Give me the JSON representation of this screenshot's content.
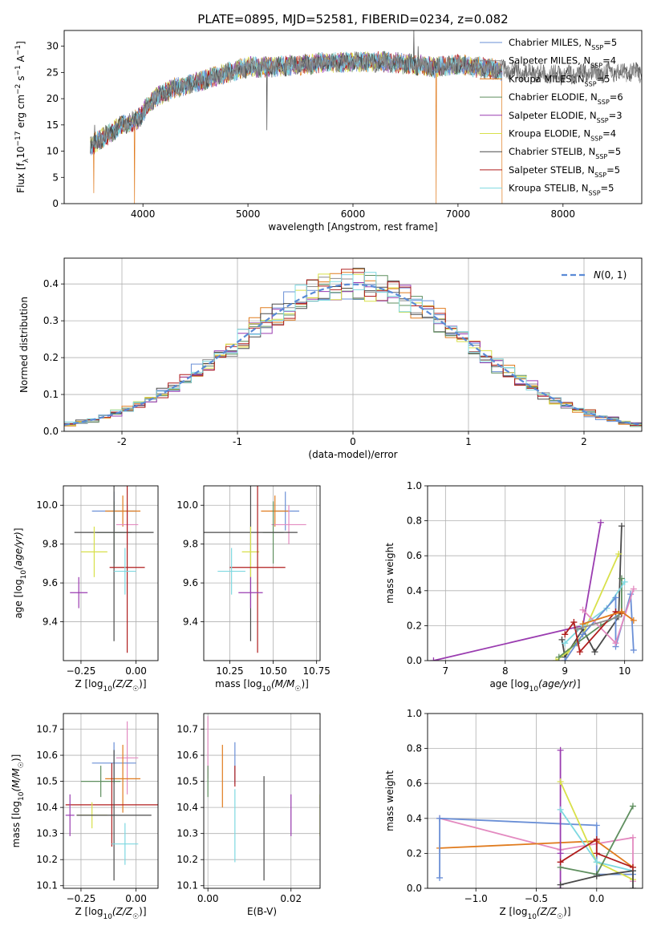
{
  "figure_title": "PLATE=0895, MJD=52581, FIBERID=0234, z=0.082",
  "colors": {
    "Chabrier MILES": "#6a8fd6",
    "Salpeter MILES": "#8c8c8c",
    "Kroupa MILES": "#e07b1e",
    "Chabrier ELODIE": "#5f8f5f",
    "Salpeter ELODIE": "#9a3cb0",
    "Kroupa ELODIE": "#d8e04a",
    "Chabrier STELIB": "#4a4a4a",
    "Salpeter STELIB": "#b01d1d",
    "Kroupa STELIB": "#7ed8e0",
    "Pink": "#e38ac0",
    "gaussian": "#5a8ad6",
    "grid": "#b0b0b0"
  },
  "chart_data": [
    {
      "id": "spectrum",
      "type": "line",
      "title": "PLATE=0895, MJD=52581, FIBERID=0234, z=0.082",
      "xlabel": "wavelength [Angstrom, rest frame]",
      "ylabel": "Flux [f_λ10^-17 erg cm^-2 s^-1 A^-1]",
      "xlim": [
        3250,
        8750
      ],
      "ylim": [
        0,
        33
      ],
      "xticks": [
        4000,
        5000,
        6000,
        7000,
        8000
      ],
      "yticks": [
        0,
        5,
        10,
        15,
        20,
        25,
        30
      ],
      "grid": false,
      "legend": "upper right",
      "legend_entries": [
        {
          "model": "Chabrier MILES",
          "nssp": "5"
        },
        {
          "model": "Salpeter MILES",
          "nssp": "4"
        },
        {
          "model": "Kroupa MILES",
          "nssp": "5"
        },
        {
          "model": "Chabrier ELODIE",
          "nssp": "6"
        },
        {
          "model": "Salpeter ELODIE",
          "nssp": "3"
        },
        {
          "model": "Kroupa ELODIE",
          "nssp": "4"
        },
        {
          "model": "Chabrier STELIB",
          "nssp": "5"
        },
        {
          "model": "Salpeter STELIB",
          "nssp": "5"
        },
        {
          "model": "Kroupa STELIB",
          "nssp": "5"
        }
      ],
      "continuum": [
        [
          3500,
          11
        ],
        [
          3650,
          13
        ],
        [
          3800,
          15
        ],
        [
          3950,
          16
        ],
        [
          4100,
          20
        ],
        [
          4300,
          22
        ],
        [
          4500,
          23
        ],
        [
          4800,
          25
        ],
        [
          5000,
          26
        ],
        [
          5200,
          26
        ],
        [
          5500,
          26.5
        ],
        [
          5800,
          27
        ],
        [
          6000,
          27
        ],
        [
          6300,
          27
        ],
        [
          6600,
          26.5
        ],
        [
          6800,
          26
        ],
        [
          7000,
          26.5
        ],
        [
          7200,
          26
        ],
        [
          7400,
          25.5
        ],
        [
          7600,
          25
        ],
        [
          8000,
          24.5
        ],
        [
          8400,
          25
        ],
        [
          8750,
          25
        ]
      ],
      "features": {
        "drops": [
          [
            3530,
            2
          ],
          [
            3920,
            0
          ],
          [
            6790,
            0
          ],
          [
            7420,
            0
          ]
        ],
        "spikes": [
          [
            3540,
            15
          ],
          [
            5180,
            14
          ],
          [
            6580,
            33
          ],
          [
            6620,
            30
          ]
        ]
      }
    },
    {
      "id": "residuals",
      "type": "histogram",
      "xlabel": "(data-model)/error",
      "ylabel": "Normed distribution",
      "xlim": [
        -2.5,
        2.5
      ],
      "ylim": [
        0,
        0.47
      ],
      "xticks": [
        -2,
        -1,
        0,
        1,
        2
      ],
      "yticks": [
        0.0,
        0.1,
        0.2,
        0.3,
        0.4
      ],
      "grid": true,
      "legend": "upper right",
      "legend_label": "N(0,1)",
      "bin_width": 0.1,
      "bins_from": -2.5
    },
    {
      "id": "age-vs-Z",
      "type": "errorbar",
      "xlabel": "Z [log10(Z/Z☉)]",
      "ylabel": "age  [log10(age/yr)]",
      "xlim": [
        -0.33,
        0.1
      ],
      "ylim": [
        9.2,
        10.1
      ],
      "xticks": [
        -0.25,
        0.0
      ],
      "yticks": [
        9.4,
        9.6,
        9.8,
        10.0
      ],
      "points": [
        {
          "model": "Chabrier MILES",
          "x": -0.1,
          "xe": 0.1,
          "y": 9.97,
          "ye": 0.1
        },
        {
          "model": "Kroupa MILES",
          "x": -0.06,
          "xe": 0.08,
          "y": 9.97,
          "ye": 0.08
        },
        {
          "model": "Pink",
          "x": -0.04,
          "xe": 0.05,
          "y": 9.9,
          "ye": 0.1
        },
        {
          "model": "Chabrier ELODIE",
          "x": -0.1,
          "xe": 0.08,
          "y": 9.86,
          "ye": 0.16
        },
        {
          "model": "Chabrier STELIB",
          "x": -0.1,
          "xe": 0.18,
          "y": 9.86,
          "ye": 0.56
        },
        {
          "model": "Kroupa ELODIE",
          "x": -0.19,
          "xe": 0.06,
          "y": 9.76,
          "ye": 0.13
        },
        {
          "model": "Salpeter STELIB",
          "x": -0.04,
          "xe": 0.08,
          "y": 9.68,
          "ye": 0.44
        },
        {
          "model": "Kroupa STELIB",
          "x": -0.05,
          "xe": 0.05,
          "y": 9.66,
          "ye": 0.12
        },
        {
          "model": "Salpeter ELODIE",
          "x": -0.26,
          "xe": 0.04,
          "y": 9.55,
          "ye": 0.08
        }
      ]
    },
    {
      "id": "age-vs-mass",
      "type": "errorbar",
      "xlabel": "mass [log10(M/M☉)]",
      "ylabel": "",
      "xlim": [
        10.1,
        10.77
      ],
      "ylim": [
        9.2,
        10.1
      ],
      "xticks": [
        10.25,
        10.5,
        10.75
      ],
      "yticks": [
        9.4,
        9.6,
        9.8,
        10.0
      ],
      "points": [
        {
          "model": "Chabrier MILES",
          "x": 10.57,
          "xe": 0.08,
          "y": 9.97,
          "ye": 0.1
        },
        {
          "model": "Kroupa MILES",
          "x": 10.51,
          "xe": 0.08,
          "y": 9.97,
          "ye": 0.08
        },
        {
          "model": "Pink",
          "x": 10.59,
          "xe": 0.1,
          "y": 9.9,
          "ye": 0.1
        },
        {
          "model": "Chabrier ELODIE",
          "x": 10.5,
          "xe": 0.06,
          "y": 9.86,
          "ye": 0.16
        },
        {
          "model": "Chabrier STELIB",
          "x": 10.37,
          "xe": 0.27,
          "y": 9.86,
          "ye": 0.56
        },
        {
          "model": "Kroupa ELODIE",
          "x": 10.37,
          "xe": 0.05,
          "y": 9.76,
          "ye": 0.13
        },
        {
          "model": "Salpeter STELIB",
          "x": 10.41,
          "xe": 0.16,
          "y": 9.68,
          "ye": 0.44
        },
        {
          "model": "Kroupa STELIB",
          "x": 10.26,
          "xe": 0.08,
          "y": 9.66,
          "ye": 0.12
        },
        {
          "model": "Salpeter ELODIE",
          "x": 10.37,
          "xe": 0.07,
          "y": 9.55,
          "ye": 0.08
        }
      ]
    },
    {
      "id": "weight-vs-age",
      "type": "line",
      "xlabel": "age  [log10(age/yr)]",
      "ylabel": "mass weight",
      "xlim": [
        6.7,
        10.3
      ],
      "ylim": [
        0,
        1.0
      ],
      "xticks": [
        7,
        8,
        9,
        10
      ],
      "yticks": [
        0.0,
        0.2,
        0.4,
        0.6,
        0.8,
        1.0
      ],
      "grid": true,
      "series": [
        {
          "model": "Salpeter ELODIE",
          "x": [
            6.8,
            9.3,
            9.6
          ],
          "y": [
            0.0,
            0.2,
            0.79
          ]
        },
        {
          "model": "Chabrier STELIB",
          "x": [
            8.95,
            9.0,
            9.3,
            9.5,
            9.9,
            9.95
          ],
          "y": [
            0.12,
            0.02,
            0.18,
            0.05,
            0.25,
            0.77
          ]
        },
        {
          "model": "Kroupa ELODIE",
          "x": [
            8.85,
            9.05,
            9.3,
            9.9
          ],
          "y": [
            0.0,
            0.05,
            0.15,
            0.61
          ]
        },
        {
          "model": "Chabrier ELODIE",
          "x": [
            8.9,
            9.2,
            9.6,
            9.95,
            9.95
          ],
          "y": [
            0.02,
            0.1,
            0.2,
            0.27,
            0.47
          ]
        },
        {
          "model": "Kroupa STELIB",
          "x": [
            9.0,
            9.3,
            9.7,
            10.0
          ],
          "y": [
            0.1,
            0.2,
            0.3,
            0.45
          ]
        },
        {
          "model": "Chabrier MILES",
          "x": [
            9.0,
            9.3,
            9.85,
            9.85,
            10.1,
            10.15
          ],
          "y": [
            0.0,
            0.15,
            0.36,
            0.08,
            0.38,
            0.06
          ]
        },
        {
          "model": "Pink",
          "x": [
            9.3,
            9.85,
            10.15
          ],
          "y": [
            0.29,
            0.1,
            0.41
          ]
        },
        {
          "model": "Salpeter STELIB",
          "x": [
            9.0,
            9.15,
            9.25,
            9.85,
            9.95
          ],
          "y": [
            0.15,
            0.22,
            0.05,
            0.28,
            0.27
          ]
        },
        {
          "model": "Kroupa MILES",
          "x": [
            9.3,
            9.95,
            10.15
          ],
          "y": [
            0.21,
            0.28,
            0.23
          ]
        },
        {
          "model": "Salpeter MILES",
          "x": [
            9.2,
            9.9
          ],
          "y": [
            0.18,
            0.25
          ]
        }
      ]
    },
    {
      "id": "mass-vs-Z",
      "type": "errorbar",
      "xlabel": "Z [log10(Z/Z☉)]",
      "ylabel": "mass [log10(M/M☉)]",
      "xlim": [
        -0.33,
        0.1
      ],
      "ylim": [
        10.09,
        10.76
      ],
      "xticks": [
        -0.25,
        0.0
      ],
      "yticks": [
        10.1,
        10.2,
        10.3,
        10.4,
        10.5,
        10.6,
        10.7
      ],
      "points": [
        {
          "model": "Pink",
          "x": -0.04,
          "xe": 0.05,
          "y": 10.59,
          "ye": 0.14
        },
        {
          "model": "Chabrier MILES",
          "x": -0.1,
          "xe": 0.1,
          "y": 10.57,
          "ye": 0.08
        },
        {
          "model": "Kroupa MILES",
          "x": -0.06,
          "xe": 0.08,
          "y": 10.51,
          "ye": 0.13
        },
        {
          "model": "Chabrier ELODIE",
          "x": -0.16,
          "xe": 0.09,
          "y": 10.5,
          "ye": 0.06
        },
        {
          "model": "Salpeter STELIB",
          "x": -0.11,
          "xe": 0.21,
          "y": 10.41,
          "ye": 0.16
        },
        {
          "model": "Kroupa ELODIE",
          "x": -0.2,
          "xe": 0.07,
          "y": 10.37,
          "ye": 0.05
        },
        {
          "model": "Chabrier STELIB",
          "x": -0.1,
          "xe": 0.17,
          "y": 10.37,
          "ye": 0.25
        },
        {
          "model": "Salpeter ELODIE",
          "x": -0.3,
          "xe": 0.02,
          "y": 10.37,
          "ye": 0.08
        },
        {
          "model": "Kroupa STELIB",
          "x": -0.05,
          "xe": 0.06,
          "y": 10.26,
          "ye": 0.08
        }
      ]
    },
    {
      "id": "mass-vs-ebv",
      "type": "errorbar",
      "xlabel": "E(B-V)",
      "ylabel": "",
      "xlim": [
        -0.001,
        0.027
      ],
      "ylim": [
        10.09,
        10.76
      ],
      "xticks": [
        0.0,
        0.02
      ],
      "yticks": [
        10.1,
        10.2,
        10.3,
        10.4,
        10.5,
        10.6,
        10.7
      ],
      "points": [
        {
          "model": "Pink",
          "x": 0.0,
          "xe": 0.0,
          "y": 10.63,
          "ye": 0.12
        },
        {
          "model": "Kroupa MILES",
          "x": 0.0035,
          "xe": 0.0,
          "y": 10.52,
          "ye": 0.12
        },
        {
          "model": "Chabrier MILES",
          "x": 0.0065,
          "xe": 0.0,
          "y": 10.57,
          "ye": 0.08
        },
        {
          "model": "Salpeter STELIB",
          "x": 0.0065,
          "xe": 0.0,
          "y": 10.52,
          "ye": 0.04
        },
        {
          "model": "Kroupa STELIB",
          "x": 0.0065,
          "xe": 0.0,
          "y": 10.33,
          "ye": 0.14
        },
        {
          "model": "Chabrier STELIB",
          "x": 0.0135,
          "xe": 0.0,
          "y": 10.32,
          "ye": 0.2
        },
        {
          "model": "Salpeter ELODIE",
          "x": 0.02,
          "xe": 0.0,
          "y": 10.37,
          "ye": 0.08
        },
        {
          "model": "Kroupa ELODIE",
          "x": 0.027,
          "xe": 0.0,
          "y": 10.37,
          "ye": 0.08
        },
        {
          "model": "Chabrier ELODIE",
          "x": 0.0,
          "xe": 0.0,
          "y": 10.5,
          "ye": 0.06
        }
      ]
    },
    {
      "id": "weight-vs-Z",
      "type": "line",
      "xlabel": "Z [log10(Z/Z☉)]",
      "ylabel": "mass weight",
      "xlim": [
        -1.4,
        0.38
      ],
      "ylim": [
        0,
        1.0
      ],
      "xticks": [
        -1.0,
        -0.5,
        0.0
      ],
      "yticks": [
        0.0,
        0.2,
        0.4,
        0.6,
        0.8,
        1.0
      ],
      "grid": true,
      "series": [
        {
          "model": "Pink",
          "x": [
            -1.3,
            -0.3,
            0.3,
            0.3
          ],
          "y": [
            0.4,
            0.22,
            0.29,
            0.04
          ]
        },
        {
          "model": "Kroupa MILES",
          "x": [
            -1.3,
            0.0,
            0.3
          ],
          "y": [
            0.23,
            0.27,
            0.12
          ]
        },
        {
          "model": "Chabrier MILES",
          "x": [
            -1.3,
            -1.3,
            0.0,
            0.0,
            0.3
          ],
          "y": [
            0.06,
            0.4,
            0.36,
            0.08,
            0.08
          ]
        },
        {
          "model": "Salpeter ELODIE",
          "x": [
            -0.3,
            -0.3,
            -0.3
          ],
          "y": [
            0.2,
            0.79,
            0.0
          ]
        },
        {
          "model": "Kroupa ELODIE",
          "x": [
            -0.3,
            0.0,
            0.3
          ],
          "y": [
            0.61,
            0.15,
            0.05
          ]
        },
        {
          "model": "Kroupa STELIB",
          "x": [
            -0.3,
            0.0,
            0.3
          ],
          "y": [
            0.45,
            0.15,
            0.1
          ]
        },
        {
          "model": "Chabrier ELODIE",
          "x": [
            -0.3,
            0.0,
            0.3
          ],
          "y": [
            0.12,
            0.08,
            0.47
          ]
        },
        {
          "model": "Chabrier STELIB",
          "x": [
            -0.3,
            0.0,
            0.3,
            0.3
          ],
          "y": [
            0.02,
            0.07,
            0.1,
            0.0
          ]
        },
        {
          "model": "Salpeter STELIB",
          "x": [
            -0.3,
            0.0,
            0.0,
            0.3
          ],
          "y": [
            0.15,
            0.28,
            0.2,
            0.12
          ]
        }
      ]
    }
  ]
}
